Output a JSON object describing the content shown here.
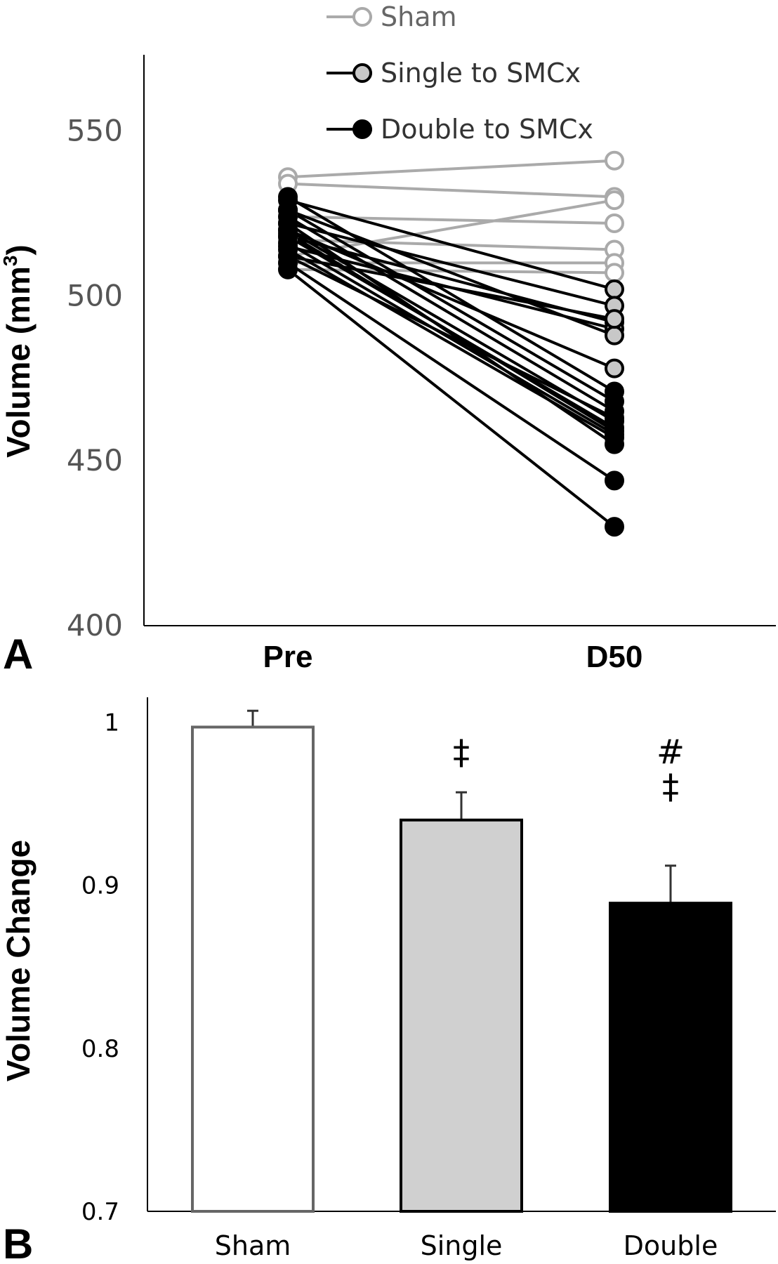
{
  "chart_data": [
    {
      "panel": "A",
      "type": "line",
      "ylabel": "Volume (mm",
      "ylabel_sup": "3",
      "ylabel_close": ")",
      "ylim": [
        400,
        575
      ],
      "yticks": [
        "400",
        "450",
        "500",
        "550"
      ],
      "ytick_values": [
        400,
        450,
        500,
        550
      ],
      "categories": [
        "Pre",
        "D50"
      ],
      "legend_position": "top-right",
      "series": [
        {
          "name": "Sham",
          "colors": {
            "line": "#aaaaaa",
            "marker_fill": "#ffffff",
            "marker_edge": "#aaaaaa"
          },
          "pairs": [
            [
              536,
              541
            ],
            [
              534,
              530
            ],
            [
              512,
              529
            ],
            [
              524,
              522
            ],
            [
              517,
              514
            ],
            [
              510,
              510
            ],
            [
              508,
              507
            ]
          ]
        },
        {
          "name": "Single to SMCx",
          "colors": {
            "line": "#000000",
            "marker_fill": "#c8c8c8",
            "marker_edge": "#000000"
          },
          "pairs": [
            [
              529,
              502
            ],
            [
              522,
              497
            ],
            [
              518,
              492
            ],
            [
              515,
              490
            ],
            [
              526,
              488
            ],
            [
              520,
              478
            ],
            [
              512,
              493
            ]
          ]
        },
        {
          "name": "Double to SMCx",
          "colors": {
            "line": "#000000",
            "marker_fill": "#000000",
            "marker_edge": "#000000"
          },
          "pairs": [
            [
              530,
              471
            ],
            [
              524,
              465
            ],
            [
              520,
              462
            ],
            [
              518,
              460
            ],
            [
              516,
              458
            ],
            [
              514,
              457
            ],
            [
              522,
              455
            ],
            [
              512,
              463
            ],
            [
              510,
              444
            ],
            [
              508,
              430
            ],
            [
              526,
              468
            ],
            [
              519,
              459
            ]
          ]
        }
      ]
    },
    {
      "panel": "B",
      "type": "bar",
      "ylabel": "Volume Change",
      "ylim": [
        0.7,
        1.02
      ],
      "yticks": [
        "0.7",
        "0.8",
        "0.9",
        "1"
      ],
      "ytick_values": [
        0.7,
        0.8,
        0.9,
        1.0
      ],
      "categories": [
        "Sham",
        "Single",
        "Double"
      ],
      "values": [
        0.997,
        0.94,
        0.889
      ],
      "errors": [
        0.01,
        0.017,
        0.023
      ],
      "colors": {
        "fills": [
          "#ffffff",
          "#d0d0d0",
          "#000000"
        ],
        "edges": [
          "#666666",
          "#000000",
          "#000000"
        ]
      },
      "annotations": [
        "",
        "‡",
        "#\n‡"
      ]
    }
  ],
  "panel_letters": {
    "a": "A",
    "b": "B"
  }
}
